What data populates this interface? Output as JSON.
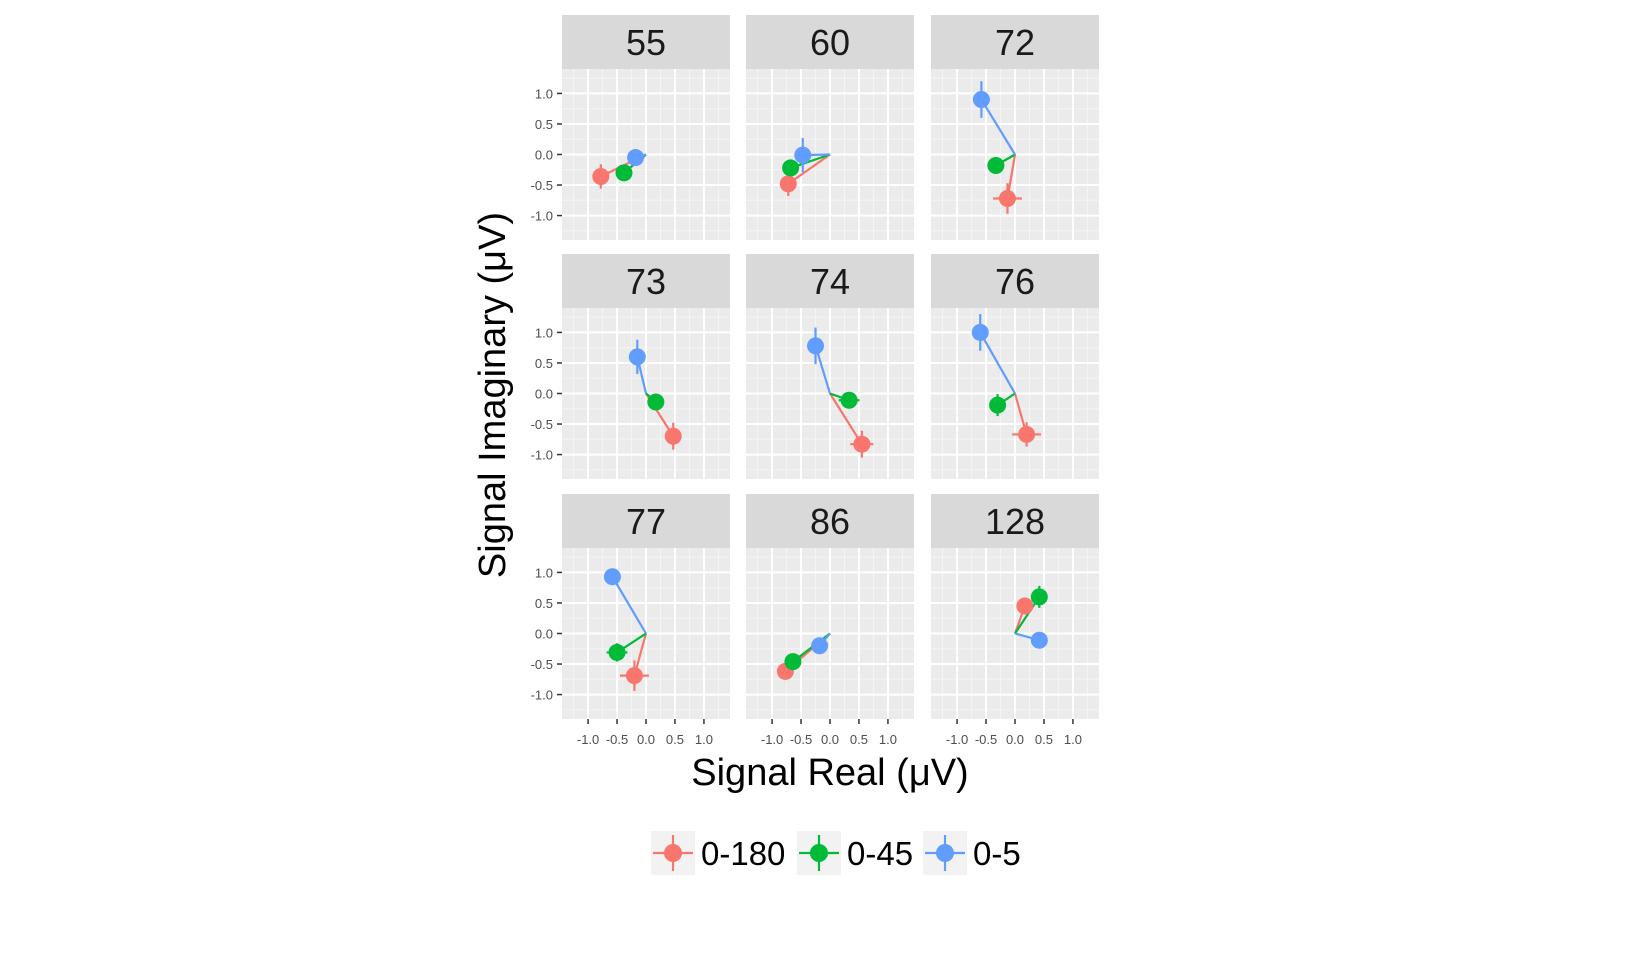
{
  "chart_data": {
    "type": "scatter",
    "facet_labels": [
      "55",
      "60",
      "72",
      "73",
      "74",
      "76",
      "77",
      "86",
      "128"
    ],
    "xlabel": "Signal Real (μV)",
    "ylabel": "Signal Imaginary (μV)",
    "xlim": [
      -1.45,
      1.45
    ],
    "ylim": [
      -1.4,
      1.4
    ],
    "x_ticks": [
      -1.0,
      -0.5,
      0.0,
      0.5,
      1.0
    ],
    "x_tick_labels": [
      "-1.0",
      "-0.5",
      "0.0",
      "0.5",
      "1.0"
    ],
    "y_ticks": [
      1.0,
      0.5,
      0.0,
      -0.5,
      -1.0
    ],
    "y_tick_labels": [
      "1.0",
      "0.5",
      "0.0",
      "-0.5",
      "-1.0"
    ],
    "grid": true,
    "legend_position": "bottom",
    "legend": [
      {
        "name": "0-180",
        "color": "#F8766D"
      },
      {
        "name": "0-45",
        "color": "#00BA38"
      },
      {
        "name": "0-5",
        "color": "#619CFF"
      }
    ],
    "panels": [
      {
        "label": "55",
        "points": [
          {
            "series": "0-180",
            "x": -0.78,
            "y": -0.36,
            "xerr": 0.13,
            "yerr": 0.2
          },
          {
            "series": "0-45",
            "x": -0.38,
            "y": -0.3,
            "xerr": 0.1,
            "yerr": 0.1
          },
          {
            "series": "0-5",
            "x": -0.18,
            "y": -0.05,
            "xerr": 0.12,
            "yerr": 0.1
          }
        ]
      },
      {
        "label": "60",
        "points": [
          {
            "series": "0-180",
            "x": -0.72,
            "y": -0.48,
            "xerr": 0.08,
            "yerr": 0.2
          },
          {
            "series": "0-45",
            "x": -0.68,
            "y": -0.22,
            "xerr": 0.08,
            "yerr": 0.13
          },
          {
            "series": "0-5",
            "x": -0.47,
            "y": -0.01,
            "xerr": 0.12,
            "yerr": 0.28
          }
        ]
      },
      {
        "label": "72",
        "points": [
          {
            "series": "0-180",
            "x": -0.13,
            "y": -0.72,
            "xerr": 0.25,
            "yerr": 0.25
          },
          {
            "series": "0-45",
            "x": -0.33,
            "y": -0.18,
            "xerr": 0.1,
            "yerr": 0.12
          },
          {
            "series": "0-5",
            "x": -0.58,
            "y": 0.9,
            "xerr": 0.08,
            "yerr": 0.3
          }
        ]
      },
      {
        "label": "73",
        "points": [
          {
            "series": "0-180",
            "x": 0.47,
            "y": -0.7,
            "xerr": 0.12,
            "yerr": 0.22
          },
          {
            "series": "0-45",
            "x": 0.17,
            "y": -0.14,
            "xerr": 0.12,
            "yerr": 0.12
          },
          {
            "series": "0-5",
            "x": -0.15,
            "y": 0.6,
            "xerr": 0.05,
            "yerr": 0.28
          }
        ]
      },
      {
        "label": "74",
        "points": [
          {
            "series": "0-180",
            "x": 0.55,
            "y": -0.83,
            "xerr": 0.2,
            "yerr": 0.22
          },
          {
            "series": "0-45",
            "x": 0.33,
            "y": -0.11,
            "xerr": 0.18,
            "yerr": 0.12
          },
          {
            "series": "0-5",
            "x": -0.25,
            "y": 0.78,
            "xerr": 0.05,
            "yerr": 0.3
          }
        ]
      },
      {
        "label": "76",
        "points": [
          {
            "series": "0-180",
            "x": 0.2,
            "y": -0.67,
            "xerr": 0.25,
            "yerr": 0.2
          },
          {
            "series": "0-45",
            "x": -0.3,
            "y": -0.19,
            "xerr": 0.13,
            "yerr": 0.18
          },
          {
            "series": "0-5",
            "x": -0.6,
            "y": 1.0,
            "xerr": 0.05,
            "yerr": 0.3
          }
        ]
      },
      {
        "label": "77",
        "points": [
          {
            "series": "0-180",
            "x": -0.2,
            "y": -0.69,
            "xerr": 0.25,
            "yerr": 0.25
          },
          {
            "series": "0-45",
            "x": -0.5,
            "y": -0.31,
            "xerr": 0.18,
            "yerr": 0.15
          },
          {
            "series": "0-5",
            "x": -0.58,
            "y": 0.93,
            "xerr": 0.04,
            "yerr": 0.04
          }
        ]
      },
      {
        "label": "86",
        "points": [
          {
            "series": "0-180",
            "x": -0.77,
            "y": -0.62,
            "xerr": 0.05,
            "yerr": 0.05
          },
          {
            "series": "0-45",
            "x": -0.64,
            "y": -0.46,
            "xerr": 0.12,
            "yerr": 0.1
          },
          {
            "series": "0-5",
            "x": -0.18,
            "y": -0.2,
            "xerr": 0.04,
            "yerr": 0.04
          }
        ]
      },
      {
        "label": "128",
        "points": [
          {
            "series": "0-180",
            "x": 0.17,
            "y": 0.45,
            "xerr": 0.06,
            "yerr": 0.06
          },
          {
            "series": "0-45",
            "x": 0.42,
            "y": 0.6,
            "xerr": 0.1,
            "yerr": 0.18
          },
          {
            "series": "0-5",
            "x": 0.42,
            "y": -0.11,
            "xerr": 0.04,
            "yerr": 0.04
          }
        ]
      }
    ]
  }
}
